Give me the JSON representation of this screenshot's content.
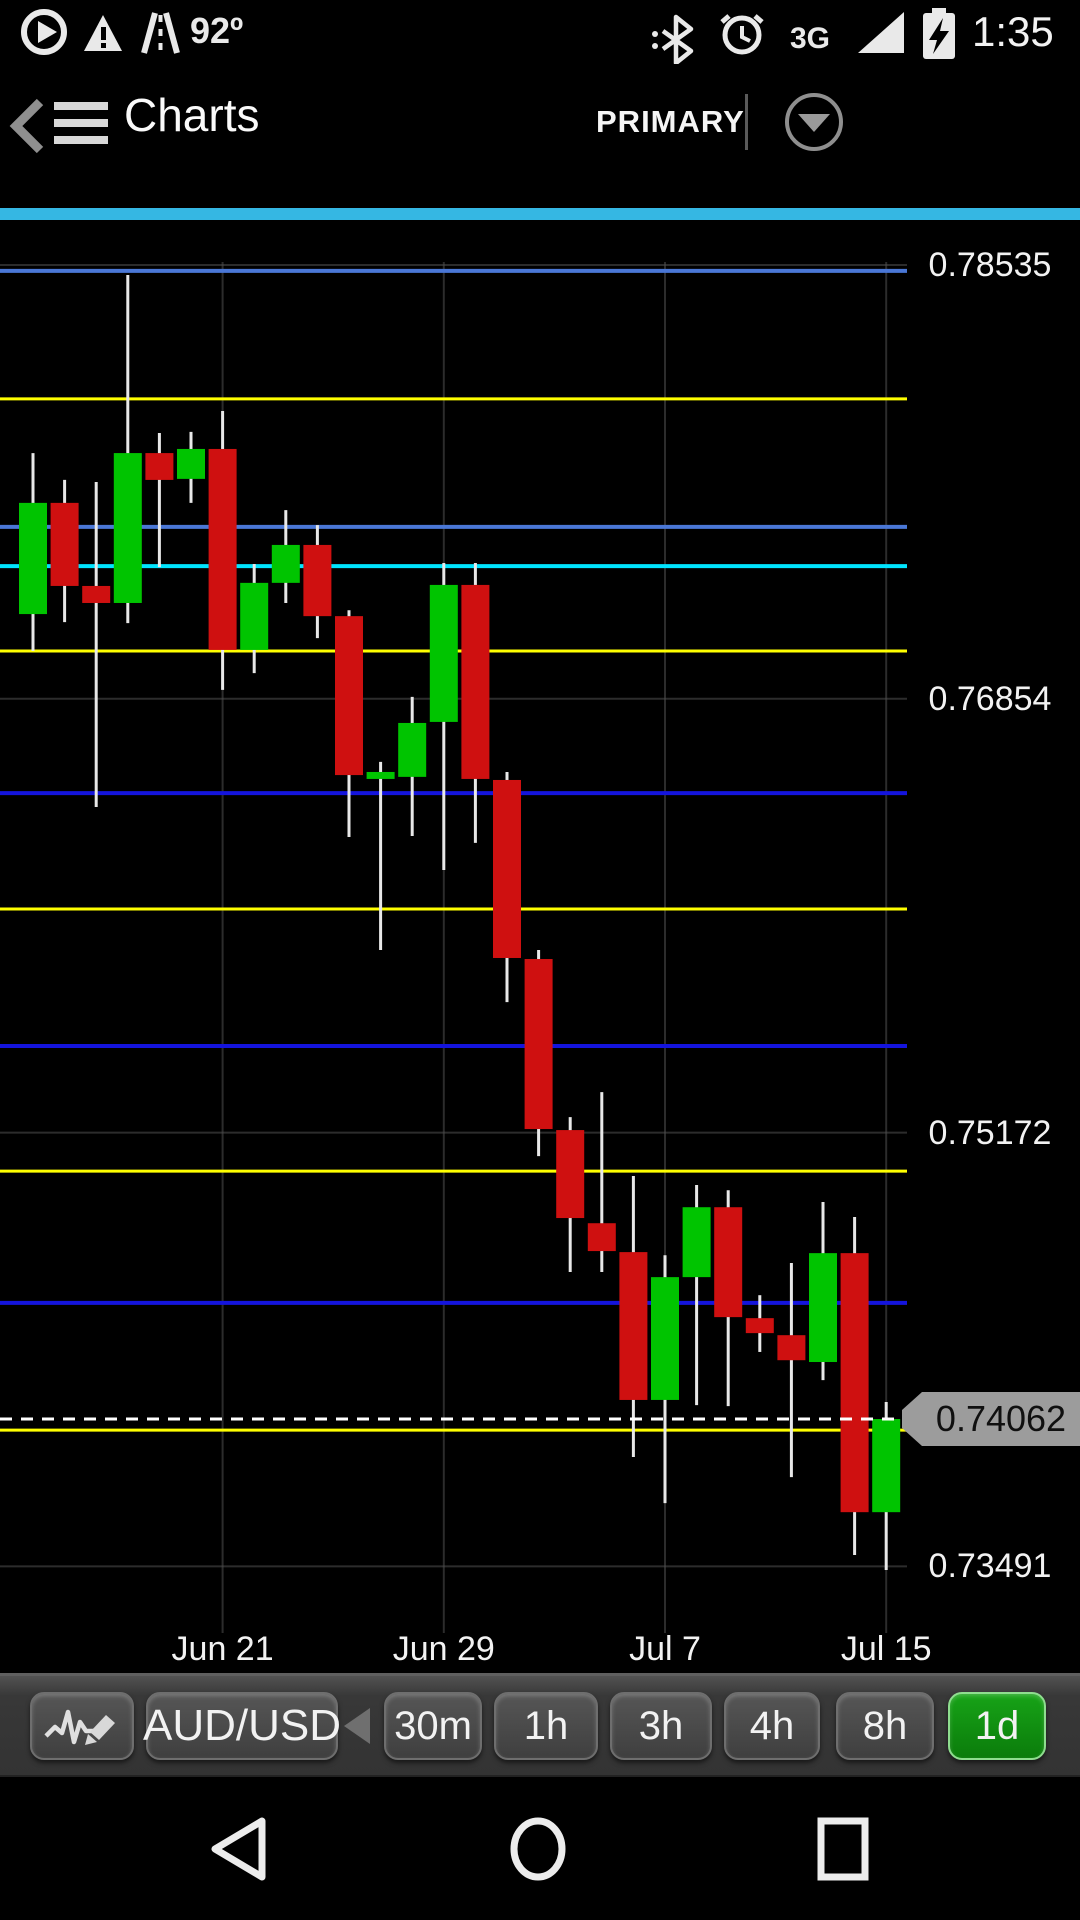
{
  "status_bar": {
    "time": "1:35",
    "temperature": "92º",
    "network_type": "3G",
    "icons": [
      "play-circle-icon",
      "warning-icon",
      "road-icon",
      "bluetooth-icon",
      "alarm-icon",
      "signal-icon",
      "battery-charging-icon"
    ]
  },
  "header": {
    "title": "Charts",
    "account_label": "PRIMARY"
  },
  "chart_data": {
    "type": "candlestick",
    "pair": "AUD/USD",
    "timeframe": "1d",
    "y_axis_labels": [
      {
        "label": "0.78535",
        "price": 0.78535
      },
      {
        "label": "0.76854",
        "price": 0.76854
      },
      {
        "label": "0.75172",
        "price": 0.75172
      },
      {
        "label": "0.73491",
        "price": 0.73491
      }
    ],
    "x_axis_labels": [
      {
        "label": "Jun 21",
        "candle": 7
      },
      {
        "label": "Jun 29",
        "candle": 14
      },
      {
        "label": "Jul 7",
        "candle": 21
      },
      {
        "label": "Jul 15",
        "candle": 28
      }
    ],
    "levels": [
      {
        "price": 0.78512,
        "color": "#4a77d6",
        "width": 4
      },
      {
        "price": 0.78016,
        "color": "#ffff00",
        "width": 3
      },
      {
        "price": 0.7752,
        "color": "#4a77d6",
        "width": 4
      },
      {
        "price": 0.77368,
        "color": "#00e5ff",
        "width": 4
      },
      {
        "price": 0.77039,
        "color": "#ffff00",
        "width": 3
      },
      {
        "price": 0.76488,
        "color": "#1414dd",
        "width": 4
      },
      {
        "price": 0.76039,
        "color": "#ffff00",
        "width": 3
      },
      {
        "price": 0.75508,
        "color": "#1414dd",
        "width": 4
      },
      {
        "price": 0.75023,
        "color": "#ffff00",
        "width": 3
      },
      {
        "price": 0.74512,
        "color": "#1414dd",
        "width": 4
      },
      {
        "price": 0.74019,
        "color": "#ffff00",
        "width": 3
      }
    ],
    "current_price": {
      "label": "0.74062",
      "value": 0.74062
    },
    "candles": [
      {
        "o": 0.77182,
        "h": 0.77806,
        "l": 0.77039,
        "c": 0.77613
      },
      {
        "o": 0.77613,
        "h": 0.77702,
        "l": 0.77151,
        "c": 0.77291
      },
      {
        "o": 0.77291,
        "h": 0.77694,
        "l": 0.76434,
        "c": 0.77225
      },
      {
        "o": 0.77225,
        "h": 0.78496,
        "l": 0.77147,
        "c": 0.77806
      },
      {
        "o": 0.77806,
        "h": 0.77884,
        "l": 0.77364,
        "c": 0.77702
      },
      {
        "o": 0.77706,
        "h": 0.77888,
        "l": 0.77613,
        "c": 0.77822
      },
      {
        "o": 0.77822,
        "h": 0.77969,
        "l": 0.76888,
        "c": 0.77043
      },
      {
        "o": 0.77043,
        "h": 0.77376,
        "l": 0.76953,
        "c": 0.77303
      },
      {
        "o": 0.77303,
        "h": 0.77585,
        "l": 0.77225,
        "c": 0.7745
      },
      {
        "o": 0.7745,
        "h": 0.77527,
        "l": 0.77089,
        "c": 0.77174
      },
      {
        "o": 0.77174,
        "h": 0.77197,
        "l": 0.76318,
        "c": 0.76558
      },
      {
        "o": 0.76543,
        "h": 0.76609,
        "l": 0.7588,
        "c": 0.7657
      },
      {
        "o": 0.76551,
        "h": 0.76861,
        "l": 0.76322,
        "c": 0.7676
      },
      {
        "o": 0.76764,
        "h": 0.7738,
        "l": 0.7619,
        "c": 0.77295
      },
      {
        "o": 0.77295,
        "h": 0.7738,
        "l": 0.76295,
        "c": 0.76543
      },
      {
        "o": 0.76539,
        "h": 0.7657,
        "l": 0.75678,
        "c": 0.75849
      },
      {
        "o": 0.75845,
        "h": 0.7588,
        "l": 0.75081,
        "c": 0.75186
      },
      {
        "o": 0.75182,
        "h": 0.75232,
        "l": 0.74632,
        "c": 0.74841
      },
      {
        "o": 0.74821,
        "h": 0.75329,
        "l": 0.74632,
        "c": 0.74713
      },
      {
        "o": 0.74709,
        "h": 0.75004,
        "l": 0.73915,
        "c": 0.74136
      },
      {
        "o": 0.74136,
        "h": 0.74697,
        "l": 0.73736,
        "c": 0.74612
      },
      {
        "o": 0.74612,
        "h": 0.74969,
        "l": 0.74116,
        "c": 0.74883
      },
      {
        "o": 0.74883,
        "h": 0.74949,
        "l": 0.74112,
        "c": 0.74457
      },
      {
        "o": 0.74453,
        "h": 0.74542,
        "l": 0.74322,
        "c": 0.74395
      },
      {
        "o": 0.74387,
        "h": 0.74667,
        "l": 0.73837,
        "c": 0.7429
      },
      {
        "o": 0.74283,
        "h": 0.74903,
        "l": 0.74213,
        "c": 0.74705
      },
      {
        "o": 0.74705,
        "h": 0.74845,
        "l": 0.73535,
        "c": 0.73701
      },
      {
        "o": 0.73701,
        "h": 0.74128,
        "l": 0.73477,
        "c": 0.74062
      }
    ],
    "colors": {
      "up": "#00c400",
      "down": "#cf1010",
      "wick": "#e8e8e8",
      "grid": "#505050",
      "current_price_line": "#ffffff",
      "price_tag_bg": "#9c9c9c",
      "accent_divider": "#35b7e3"
    }
  },
  "toolbar": {
    "instrument_label": "AUD/USD",
    "timeframes": [
      "30m",
      "1h",
      "3h",
      "4h",
      "8h",
      "1d"
    ],
    "selected_timeframe": "1d"
  },
  "nav_bar": {
    "icons": [
      "back-triangle-icon",
      "home-circle-icon",
      "recents-square-icon"
    ]
  }
}
